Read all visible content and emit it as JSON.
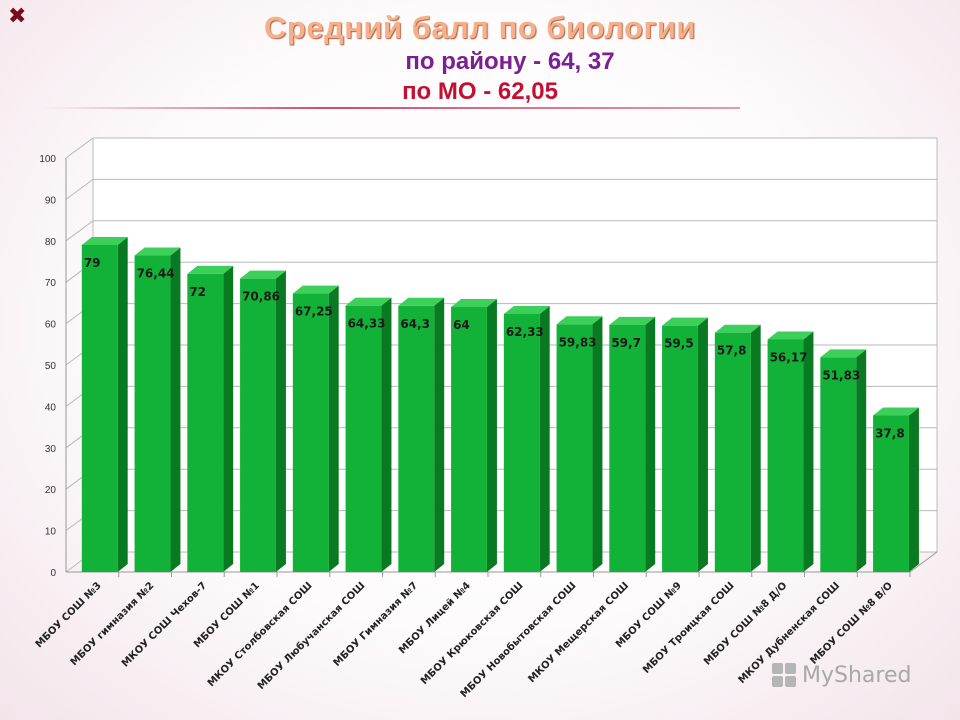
{
  "header": {
    "title_line1": "Средний балл по биологии",
    "title_line2": "по району - 64, 37",
    "title_line3": "по МО - 62,05"
  },
  "watermark": {
    "text": "MyShared"
  },
  "colors": {
    "bar_front": "#12b238",
    "bar_side": "#0a7a22",
    "bar_top": "#3cd05a",
    "grid": "#b9b9b9",
    "title_line1": "#f3b08a",
    "title_line2": "#7b2090",
    "title_line3": "#c41030"
  },
  "chart_data": {
    "type": "bar",
    "title": "Средний балл по биологии",
    "xlabel": "",
    "ylabel": "",
    "ylim": [
      0,
      100
    ],
    "yticks": [
      0,
      10,
      20,
      30,
      40,
      50,
      60,
      70,
      80,
      90,
      100
    ],
    "grid": true,
    "three_d": true,
    "categories": [
      "МБОУ СОШ №3",
      "МБОУ гимназия №2",
      "МКОУ СОШ Чехов-7",
      "МБОУ СОШ №1",
      "МКОУ Столбовская СОШ",
      "МБОУ Любучанская СОШ",
      "МБОУ Гимназия №7",
      "МБОУ Лицей №4",
      "МБОУ Крюковская СОШ",
      "МБОУ Новобытовская СОШ",
      "МКОУ Мещерская СОШ",
      "МБОУ СОШ №9",
      "МБОУ Троицкая СОШ",
      "МБОУ СОШ №8 Д/О",
      "МКОУ Дубненская СОШ",
      "МБОУ СОШ №8 В/О"
    ],
    "values": [
      79,
      76.44,
      72,
      70.86,
      67.25,
      64.33,
      64.3,
      64,
      62.33,
      59.83,
      59.7,
      59.5,
      57.8,
      56.17,
      51.83,
      37.8
    ],
    "value_labels": [
      "79",
      "76,44",
      "72",
      "70,86",
      "67,25",
      "64,33",
      "64,3",
      "64",
      "62,33",
      "59,83",
      "59,7",
      "59,5",
      "57,8",
      "56,17",
      "51,83",
      "37,8"
    ]
  }
}
